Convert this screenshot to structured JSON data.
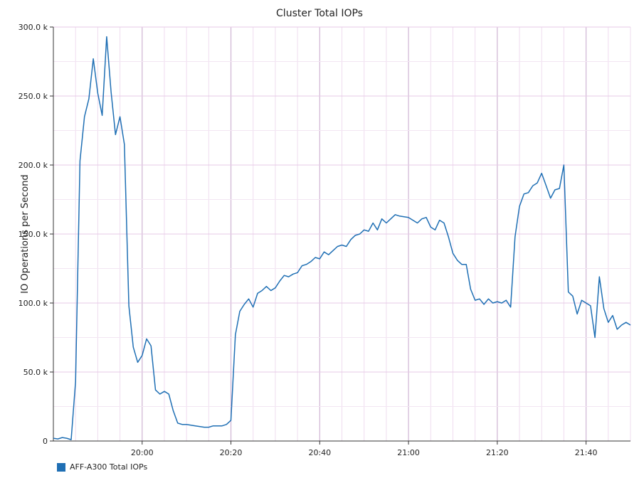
{
  "chart_data": {
    "type": "line",
    "title": "Cluster Total IOPs",
    "ylabel": "IO Operations per Second",
    "xlabel": "",
    "ylim": [
      0,
      300000
    ],
    "yticks": [
      {
        "value": 0,
        "label": "0"
      },
      {
        "value": 50000,
        "label": "50.0 k"
      },
      {
        "value": 100000,
        "label": "100.0 k"
      },
      {
        "value": 150000,
        "label": "150.0 k"
      },
      {
        "value": 200000,
        "label": "200.0 k"
      },
      {
        "value": 250000,
        "label": "250.0 k"
      },
      {
        "value": 300000,
        "label": "300.0 k"
      }
    ],
    "xlim": [
      "19:40",
      "21:50"
    ],
    "xticks": [
      "20:00",
      "20:20",
      "20:40",
      "21:00",
      "21:20",
      "21:40"
    ],
    "grid": true,
    "legend_position": "bottom-left",
    "series": [
      {
        "name": "AFF-A300 Total IOPs",
        "color": "#1f6fb4",
        "x": [
          "19:40",
          "19:41",
          "19:42",
          "19:43",
          "19:44",
          "19:45",
          "19:46",
          "19:47",
          "19:48",
          "19:49",
          "19:50",
          "19:51",
          "19:52",
          "19:53",
          "19:54",
          "19:55",
          "19:56",
          "19:57",
          "19:58",
          "19:59",
          "20:00",
          "20:01",
          "20:02",
          "20:03",
          "20:04",
          "20:05",
          "20:06",
          "20:07",
          "20:08",
          "20:09",
          "20:10",
          "20:12",
          "20:14",
          "20:15",
          "20:16",
          "20:18",
          "20:19",
          "20:20",
          "20:21",
          "20:22",
          "20:23",
          "20:24",
          "20:25",
          "20:26",
          "20:27",
          "20:28",
          "20:29",
          "20:30",
          "20:31",
          "20:32",
          "20:33",
          "20:34",
          "20:35",
          "20:36",
          "20:37",
          "20:38",
          "20:39",
          "20:40",
          "20:41",
          "20:42",
          "20:43",
          "20:44",
          "20:45",
          "20:46",
          "20:47",
          "20:48",
          "20:49",
          "20:50",
          "20:51",
          "20:52",
          "20:53",
          "20:54",
          "20:55",
          "20:56",
          "20:57",
          "20:58",
          "21:00",
          "21:01",
          "21:02",
          "21:03",
          "21:04",
          "21:05",
          "21:06",
          "21:07",
          "21:08",
          "21:09",
          "21:10",
          "21:11",
          "21:12",
          "21:13",
          "21:14",
          "21:15",
          "21:16",
          "21:17",
          "21:18",
          "21:19",
          "21:20",
          "21:21",
          "21:22",
          "21:23",
          "21:24",
          "21:25",
          "21:26",
          "21:27",
          "21:28",
          "21:29",
          "21:30",
          "21:31",
          "21:32",
          "21:33",
          "21:34",
          "21:35",
          "21:36",
          "21:37",
          "21:38",
          "21:39",
          "21:40",
          "21:41",
          "21:42",
          "21:43",
          "21:44",
          "21:45",
          "21:46",
          "21:47",
          "21:48",
          "21:49",
          "21:50"
        ],
        "values": [
          2000,
          1500,
          2500,
          2000,
          1000,
          43000,
          203000,
          235000,
          248000,
          277000,
          252000,
          236000,
          293000,
          253000,
          222000,
          235000,
          215000,
          98000,
          68000,
          57000,
          62000,
          74000,
          69000,
          37000,
          34000,
          36000,
          34000,
          22000,
          13000,
          12000,
          12000,
          11000,
          10000,
          10000,
          11000,
          11000,
          12000,
          15000,
          77000,
          94000,
          99000,
          103000,
          97000,
          107000,
          109000,
          112000,
          109000,
          111000,
          116000,
          120000,
          119000,
          121000,
          122000,
          127000,
          128000,
          130000,
          133000,
          132000,
          137000,
          135000,
          138000,
          141000,
          142000,
          141000,
          146000,
          149000,
          150000,
          153000,
          152000,
          158000,
          153000,
          161000,
          158000,
          161000,
          164000,
          163000,
          162000,
          160000,
          158000,
          161000,
          162000,
          155000,
          153000,
          160000,
          158000,
          148000,
          136000,
          131000,
          128000,
          128000,
          110000,
          102000,
          103000,
          99000,
          103000,
          100000,
          101000,
          100000,
          102000,
          97000,
          148000,
          170000,
          179000,
          180000,
          185000,
          187000,
          194000,
          185000,
          176000,
          182000,
          183000,
          200000,
          108000,
          105000,
          92000,
          102000,
          100000,
          98000,
          75000,
          119000,
          96000,
          86000,
          91000,
          81000,
          84000,
          86000,
          84000
        ]
      }
    ]
  }
}
